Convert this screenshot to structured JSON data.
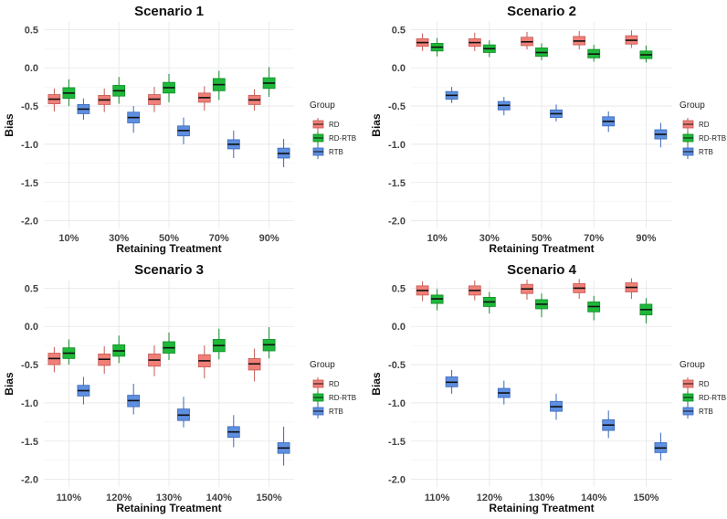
{
  "colors": {
    "RD": "#f07f78",
    "RD-RTB": "#1fb83a",
    "RTB": "#5e8fe0",
    "RD_dark": "#c45a54",
    "RD-RTB_dark": "#118a26",
    "RTB_dark": "#3a68b8"
  },
  "legend": {
    "title": "Group",
    "labels": [
      "RD",
      "RD-RTB",
      "RTB"
    ]
  },
  "chart_data": [
    {
      "type": "box",
      "title": "Scenario 1",
      "xlabel": "Retaining Treatment",
      "ylabel": "Bias",
      "ylim": [
        -2.1,
        0.6
      ],
      "yticks": [
        0.5,
        0.0,
        -0.5,
        -1.0,
        -1.5,
        -2.0
      ],
      "ytick_labels": [
        "0.5",
        "0.0",
        "-0.5",
        "-1.0",
        "-1.5",
        "-2.0"
      ],
      "categories": [
        "10%",
        "30%",
        "50%",
        "70%",
        "90%"
      ],
      "series": [
        {
          "name": "RD",
          "boxes": [
            [
              -0.57,
              -0.47,
              -0.41,
              -0.35,
              -0.27
            ],
            [
              -0.58,
              -0.48,
              -0.42,
              -0.36,
              -0.27
            ],
            [
              -0.58,
              -0.48,
              -0.41,
              -0.35,
              -0.25
            ],
            [
              -0.56,
              -0.45,
              -0.39,
              -0.33,
              -0.24
            ],
            [
              -0.56,
              -0.48,
              -0.42,
              -0.36,
              -0.28
            ]
          ]
        },
        {
          "name": "RD-RTB",
          "boxes": [
            [
              -0.5,
              -0.4,
              -0.33,
              -0.26,
              -0.15
            ],
            [
              -0.47,
              -0.37,
              -0.3,
              -0.23,
              -0.12
            ],
            [
              -0.45,
              -0.33,
              -0.26,
              -0.19,
              -0.08
            ],
            [
              -0.42,
              -0.3,
              -0.22,
              -0.14,
              -0.04
            ],
            [
              -0.38,
              -0.27,
              -0.2,
              -0.13,
              0.01
            ]
          ]
        },
        {
          "name": "RTB",
          "boxes": [
            [
              -0.68,
              -0.6,
              -0.54,
              -0.48,
              -0.4
            ],
            [
              -0.85,
              -0.72,
              -0.65,
              -0.58,
              -0.5
            ],
            [
              -1.0,
              -0.89,
              -0.82,
              -0.76,
              -0.65
            ],
            [
              -1.18,
              -1.06,
              -1.0,
              -0.94,
              -0.82
            ],
            [
              -1.3,
              -1.18,
              -1.12,
              -1.05,
              -0.93
            ]
          ]
        }
      ]
    },
    {
      "type": "box",
      "title": "Scenario 2",
      "xlabel": "Retaining Treatment",
      "ylabel": "Bias",
      "ylim": [
        -2.1,
        0.6
      ],
      "yticks": [
        0.5,
        0.0,
        -0.5,
        -1.0,
        -1.5,
        -2.0
      ],
      "ytick_labels": [
        "0.5",
        "0.0",
        "-0.5",
        "-1.0",
        "-1.5",
        "-2.0"
      ],
      "categories": [
        "10%",
        "30%",
        "50%",
        "70%",
        "90%"
      ],
      "series": [
        {
          "name": "RD",
          "boxes": [
            [
              0.22,
              0.28,
              0.33,
              0.38,
              0.45
            ],
            [
              0.22,
              0.28,
              0.33,
              0.38,
              0.46
            ],
            [
              0.24,
              0.29,
              0.34,
              0.4,
              0.47
            ],
            [
              0.24,
              0.3,
              0.35,
              0.41,
              0.48
            ],
            [
              0.26,
              0.31,
              0.36,
              0.42,
              0.49
            ]
          ]
        },
        {
          "name": "RD-RTB",
          "boxes": [
            [
              0.15,
              0.22,
              0.27,
              0.32,
              0.39
            ],
            [
              0.14,
              0.2,
              0.25,
              0.3,
              0.36
            ],
            [
              0.1,
              0.15,
              0.2,
              0.26,
              0.32
            ],
            [
              0.08,
              0.13,
              0.18,
              0.24,
              0.3
            ],
            [
              0.07,
              0.12,
              0.17,
              0.22,
              0.29
            ]
          ]
        },
        {
          "name": "RTB",
          "boxes": [
            [
              -0.46,
              -0.41,
              -0.36,
              -0.31,
              -0.25
            ],
            [
              -0.62,
              -0.55,
              -0.49,
              -0.44,
              -0.38
            ],
            [
              -0.7,
              -0.65,
              -0.6,
              -0.55,
              -0.48
            ],
            [
              -0.84,
              -0.76,
              -0.7,
              -0.64,
              -0.57
            ],
            [
              -1.04,
              -0.93,
              -0.87,
              -0.81,
              -0.72
            ]
          ]
        }
      ]
    },
    {
      "type": "box",
      "title": "Scenario 3",
      "xlabel": "Retaining Treatment",
      "ylabel": "Bias",
      "ylim": [
        -2.1,
        0.6
      ],
      "yticks": [
        0.5,
        0.0,
        -0.5,
        -1.0,
        -1.5,
        -2.0
      ],
      "ytick_labels": [
        "0.5",
        "0.0",
        "-0.5",
        "-1.0",
        "-1.5",
        "-2.0"
      ],
      "categories": [
        "110%",
        "120%",
        "130%",
        "140%",
        "150%"
      ],
      "series": [
        {
          "name": "RD",
          "boxes": [
            [
              -0.6,
              -0.5,
              -0.42,
              -0.35,
              -0.27
            ],
            [
              -0.62,
              -0.51,
              -0.43,
              -0.36,
              -0.26
            ],
            [
              -0.65,
              -0.52,
              -0.44,
              -0.36,
              -0.25
            ],
            [
              -0.68,
              -0.53,
              -0.45,
              -0.37,
              -0.25
            ],
            [
              -0.72,
              -0.57,
              -0.49,
              -0.42,
              -0.29
            ]
          ]
        },
        {
          "name": "RD-RTB",
          "boxes": [
            [
              -0.5,
              -0.42,
              -0.35,
              -0.28,
              -0.17
            ],
            [
              -0.48,
              -0.39,
              -0.32,
              -0.24,
              -0.12
            ],
            [
              -0.44,
              -0.35,
              -0.28,
              -0.2,
              -0.08
            ],
            [
              -0.43,
              -0.33,
              -0.25,
              -0.17,
              -0.03
            ],
            [
              -0.42,
              -0.32,
              -0.24,
              -0.17,
              -0.01
            ]
          ]
        },
        {
          "name": "RTB",
          "boxes": [
            [
              -1.02,
              -0.91,
              -0.84,
              -0.77,
              -0.66
            ],
            [
              -1.15,
              -1.05,
              -0.97,
              -0.9,
              -0.75
            ],
            [
              -1.32,
              -1.23,
              -1.16,
              -1.08,
              -0.92
            ],
            [
              -1.58,
              -1.45,
              -1.38,
              -1.31,
              -1.16
            ],
            [
              -1.82,
              -1.66,
              -1.59,
              -1.52,
              -1.31
            ]
          ]
        }
      ]
    },
    {
      "type": "box",
      "title": "Scenario 4",
      "xlabel": "Retaining Treatment",
      "ylabel": "Bias",
      "ylim": [
        -2.1,
        0.6
      ],
      "yticks": [
        0.5,
        0.0,
        -0.5,
        -1.0,
        -1.5,
        -2.0
      ],
      "ytick_labels": [
        "0.5",
        "0.0",
        "-0.5",
        "-1.0",
        "-1.5",
        "-2.0"
      ],
      "categories": [
        "110%",
        "120%",
        "130%",
        "140%",
        "150%"
      ],
      "series": [
        {
          "name": "RD",
          "boxes": [
            [
              0.33,
              0.41,
              0.47,
              0.53,
              0.59
            ],
            [
              0.34,
              0.41,
              0.47,
              0.53,
              0.6
            ],
            [
              0.35,
              0.43,
              0.49,
              0.55,
              0.61
            ],
            [
              0.36,
              0.44,
              0.5,
              0.56,
              0.62
            ],
            [
              0.36,
              0.45,
              0.51,
              0.57,
              0.63
            ]
          ]
        },
        {
          "name": "RD-RTB",
          "boxes": [
            [
              0.21,
              0.3,
              0.36,
              0.41,
              0.49
            ],
            [
              0.17,
              0.26,
              0.32,
              0.38,
              0.45
            ],
            [
              0.12,
              0.23,
              0.29,
              0.35,
              0.43
            ],
            [
              0.08,
              0.19,
              0.26,
              0.32,
              0.4
            ],
            [
              0.04,
              0.15,
              0.22,
              0.29,
              0.37
            ]
          ]
        },
        {
          "name": "RTB",
          "boxes": [
            [
              -0.88,
              -0.79,
              -0.73,
              -0.66,
              -0.57
            ],
            [
              -1.02,
              -0.93,
              -0.87,
              -0.81,
              -0.71
            ],
            [
              -1.22,
              -1.11,
              -1.05,
              -0.98,
              -0.88
            ],
            [
              -1.46,
              -1.36,
              -1.29,
              -1.22,
              -1.1
            ],
            [
              -1.75,
              -1.65,
              -1.59,
              -1.52,
              -1.39
            ]
          ]
        }
      ]
    }
  ]
}
